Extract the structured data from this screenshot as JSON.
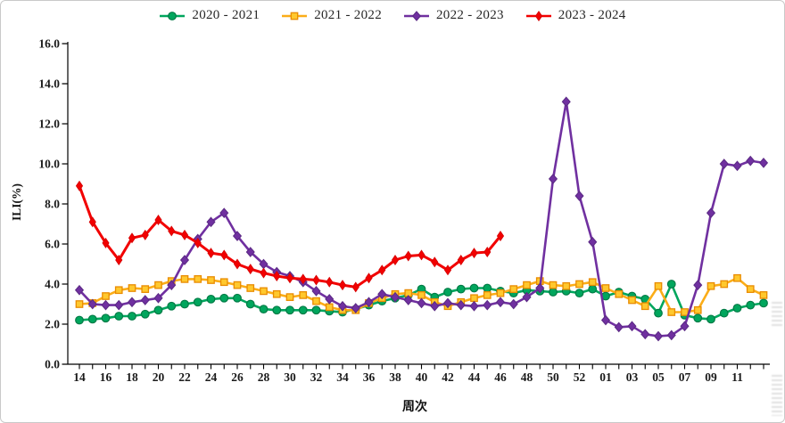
{
  "figure": {
    "y_axis_label": "ILI(%)",
    "x_axis_label": "周次"
  },
  "legend": {
    "items": [
      {
        "label": "2020 - 2021",
        "marker": "circle",
        "color": "#00A65D"
      },
      {
        "label": "2021 - 2022",
        "marker": "square",
        "color": "#FBAD18"
      },
      {
        "label": "2022 - 2023",
        "marker": "diamond",
        "color": "#7030A0"
      },
      {
        "label": "2023 - 2024",
        "marker": "thin-diamond",
        "color": "#F20000"
      }
    ]
  },
  "chart_data": {
    "type": "line",
    "title": "",
    "xlabel": "周次",
    "ylabel": "ILI(%)",
    "ylim": [
      0,
      16
    ],
    "grid": false,
    "legend_position": "top-center",
    "y_tick_labels": [
      "0.0",
      "2.0",
      "4.0",
      "6.0",
      "8.0",
      "10.0",
      "12.0",
      "14.0",
      "16.0"
    ],
    "x_categories": [
      "14",
      "15",
      "16",
      "17",
      "18",
      "19",
      "20",
      "21",
      "22",
      "23",
      "24",
      "25",
      "26",
      "27",
      "28",
      "29",
      "30",
      "31",
      "32",
      "33",
      "34",
      "35",
      "36",
      "37",
      "38",
      "39",
      "40",
      "41",
      "42",
      "43",
      "44",
      "45",
      "46",
      "47",
      "48",
      "49",
      "50",
      "51",
      "52",
      "53",
      "01",
      "02",
      "03",
      "04",
      "05",
      "06",
      "07",
      "08",
      "09",
      "10",
      "11",
      "12",
      "13"
    ],
    "x_labeled_ticks": [
      "14",
      "16",
      "18",
      "20",
      "22",
      "24",
      "26",
      "28",
      "30",
      "32",
      "34",
      "36",
      "38",
      "40",
      "42",
      "44",
      "46",
      "48",
      "50",
      "52",
      "01",
      "03",
      "05",
      "07",
      "09",
      "11"
    ],
    "series": [
      {
        "name": "2020 - 2021",
        "marker": "circle",
        "color": "#00A65D",
        "marker_fill": "#00A65D",
        "marker_stroke": "#007A45",
        "values": [
          2.2,
          2.25,
          2.3,
          2.4,
          2.4,
          2.5,
          2.7,
          2.9,
          3.0,
          3.1,
          3.25,
          3.3,
          3.3,
          3.0,
          2.75,
          2.7,
          2.7,
          2.7,
          2.7,
          2.65,
          2.6,
          2.75,
          2.95,
          3.15,
          3.3,
          3.45,
          3.75,
          3.35,
          3.6,
          3.75,
          3.8,
          3.8,
          3.65,
          3.55,
          3.7,
          3.65,
          3.6,
          3.65,
          3.55,
          3.75,
          3.4,
          3.6,
          3.4,
          3.25,
          2.55,
          4.0,
          2.45,
          2.3,
          2.25,
          2.55,
          2.8,
          2.95,
          3.05
        ]
      },
      {
        "name": "2021 - 2022",
        "marker": "square",
        "color": "#FBAD18",
        "marker_fill": "#FFC82E",
        "marker_stroke": "#E98B00",
        "values": [
          3.0,
          3.05,
          3.4,
          3.7,
          3.8,
          3.75,
          3.95,
          4.15,
          4.25,
          4.25,
          4.2,
          4.1,
          3.95,
          3.8,
          3.65,
          3.5,
          3.35,
          3.45,
          3.15,
          2.85,
          2.7,
          2.7,
          3.05,
          3.3,
          3.5,
          3.55,
          3.45,
          3.1,
          2.9,
          3.1,
          3.3,
          3.45,
          3.55,
          3.75,
          3.95,
          4.15,
          3.95,
          3.9,
          4.0,
          4.1,
          3.8,
          3.5,
          3.2,
          2.9,
          3.9,
          2.6,
          2.6,
          2.7,
          3.9,
          4.0,
          4.3,
          3.75,
          3.45
        ]
      },
      {
        "name": "2022 - 2023",
        "marker": "diamond",
        "color": "#7030A0",
        "marker_fill": "#7030A0",
        "marker_stroke": "#5B2A84",
        "values": [
          3.7,
          3.0,
          2.95,
          2.95,
          3.1,
          3.2,
          3.3,
          3.95,
          5.2,
          6.25,
          7.1,
          7.55,
          6.4,
          5.6,
          5.0,
          4.6,
          4.4,
          4.1,
          3.65,
          3.25,
          2.9,
          2.8,
          3.1,
          3.5,
          3.35,
          3.2,
          3.05,
          2.9,
          3.05,
          2.95,
          2.9,
          2.95,
          3.1,
          3.0,
          3.35,
          3.8,
          9.25,
          13.1,
          8.4,
          6.1,
          2.2,
          1.85,
          1.9,
          1.5,
          1.4,
          1.45,
          1.9,
          3.95,
          7.55,
          10.0,
          9.9,
          10.15,
          10.05
        ]
      },
      {
        "name": "2023 - 2024",
        "marker": "thin-diamond",
        "color": "#F20000",
        "marker_fill": "#F20000",
        "marker_stroke": "#D40000",
        "values": [
          8.9,
          7.1,
          6.05,
          5.2,
          6.3,
          6.45,
          7.2,
          6.65,
          6.45,
          6.05,
          5.55,
          5.45,
          5.0,
          4.75,
          4.55,
          4.4,
          4.3,
          4.25,
          4.2,
          4.1,
          3.95,
          3.85,
          4.3,
          4.7,
          5.2,
          5.4,
          5.45,
          5.1,
          4.7,
          5.2,
          5.55,
          5.6,
          6.4,
          null,
          null,
          null,
          null,
          null,
          null,
          null,
          null,
          null,
          null,
          null,
          null,
          null,
          null,
          null,
          null,
          null,
          null,
          null,
          null
        ]
      }
    ]
  }
}
